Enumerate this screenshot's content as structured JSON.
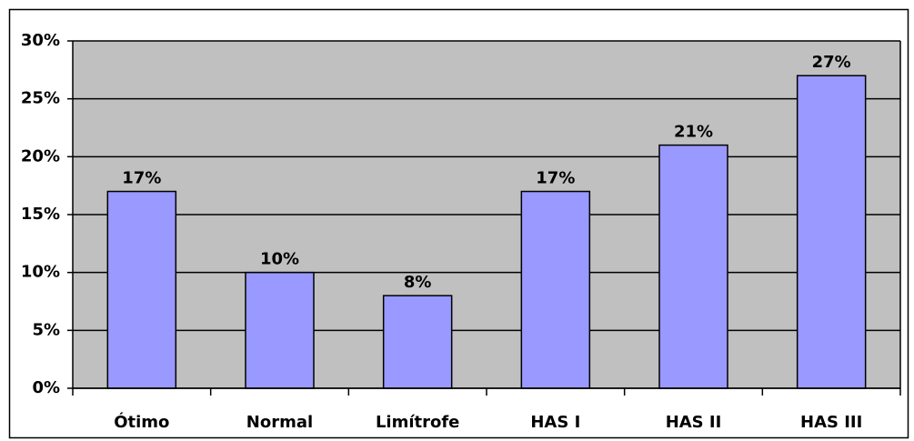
{
  "chart_data": {
    "type": "bar",
    "categories": [
      "Ótimo",
      "Normal",
      "Limítrofe",
      "HAS I",
      "HAS II",
      "HAS III"
    ],
    "values": [
      17,
      10,
      8,
      17,
      21,
      27
    ],
    "value_labels": [
      "17%",
      "10%",
      "8%",
      "17%",
      "21%",
      "27%"
    ],
    "color": "#9999ff",
    "ylim": [
      0,
      30
    ],
    "yticks": [
      {
        "value": 0,
        "label": "0%"
      },
      {
        "value": 5,
        "label": "5%"
      },
      {
        "value": 10,
        "label": "10%"
      },
      {
        "value": 15,
        "label": "15%"
      },
      {
        "value": 20,
        "label": "20%"
      },
      {
        "value": 25,
        "label": "25%"
      },
      {
        "value": 30,
        "label": "30%"
      }
    ],
    "grid": true
  }
}
